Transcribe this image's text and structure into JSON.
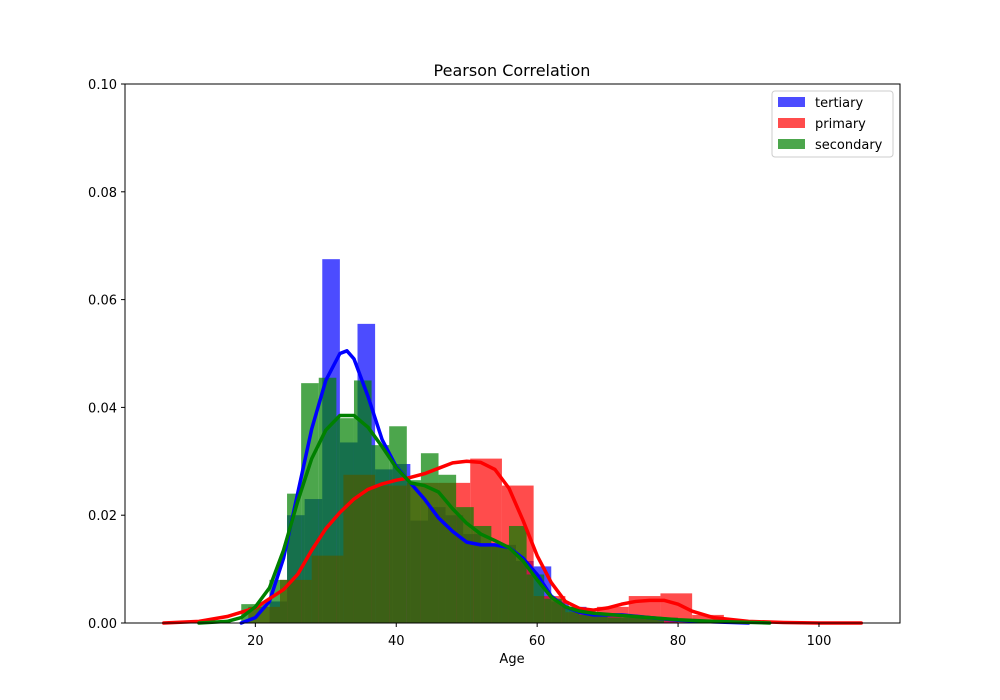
{
  "chart_data": {
    "type": "bar",
    "title": "Pearson Correlation",
    "xlabel": "Age",
    "ylabel": "",
    "xlim": [
      1.5,
      111.5
    ],
    "ylim": [
      0,
      0.1
    ],
    "xticks": [
      20,
      40,
      60,
      80,
      100
    ],
    "yticks": [
      0.0,
      0.02,
      0.04,
      0.06,
      0.08,
      0.1
    ],
    "xtick_labels": [
      "20",
      "40",
      "60",
      "80",
      "100"
    ],
    "ytick_labels": [
      "0.00",
      "0.02",
      "0.04",
      "0.06",
      "0.08",
      "0.10"
    ],
    "legend_position": "top-right",
    "grid": false,
    "series": [
      {
        "name": "tertiary",
        "color": "#0000ff",
        "histogram": [
          {
            "x0": 22.0,
            "x1": 24.5,
            "y": 0.004
          },
          {
            "x0": 24.5,
            "x1": 27.0,
            "y": 0.02
          },
          {
            "x0": 27.0,
            "x1": 29.5,
            "y": 0.023
          },
          {
            "x0": 29.5,
            "x1": 32.0,
            "y": 0.0675
          },
          {
            "x0": 32.0,
            "x1": 34.5,
            "y": 0.0335
          },
          {
            "x0": 34.5,
            "x1": 37.0,
            "y": 0.0555
          },
          {
            "x0": 37.0,
            "x1": 39.5,
            "y": 0.0285
          },
          {
            "x0": 39.5,
            "x1": 42.0,
            "y": 0.0295
          },
          {
            "x0": 42.0,
            "x1": 44.5,
            "y": 0.019
          },
          {
            "x0": 44.5,
            "x1": 47.0,
            "y": 0.0215
          },
          {
            "x0": 47.0,
            "x1": 49.5,
            "y": 0.02
          },
          {
            "x0": 49.5,
            "x1": 52.0,
            "y": 0.0165
          },
          {
            "x0": 52.0,
            "x1": 54.5,
            "y": 0.0145
          },
          {
            "x0": 54.5,
            "x1": 57.0,
            "y": 0.0145
          },
          {
            "x0": 57.0,
            "x1": 59.5,
            "y": 0.0115
          },
          {
            "x0": 59.5,
            "x1": 62.0,
            "y": 0.0105
          },
          {
            "x0": 62.0,
            "x1": 64.5,
            "y": 0.004
          },
          {
            "x0": 64.5,
            "x1": 67.0,
            "y": 0.003
          },
          {
            "x0": 67.0,
            "x1": 72.0,
            "y": 0.0015
          },
          {
            "x0": 72.0,
            "x1": 80.0,
            "y": 0.001
          }
        ],
        "kde": [
          [
            18,
            0.0
          ],
          [
            20,
            0.001
          ],
          [
            22,
            0.004
          ],
          [
            24,
            0.012
          ],
          [
            26,
            0.024
          ],
          [
            28,
            0.036
          ],
          [
            30,
            0.045
          ],
          [
            32,
            0.05
          ],
          [
            33,
            0.0505
          ],
          [
            34,
            0.049
          ],
          [
            36,
            0.042
          ],
          [
            38,
            0.034
          ],
          [
            40,
            0.029
          ],
          [
            42,
            0.026
          ],
          [
            44,
            0.023
          ],
          [
            46,
            0.0195
          ],
          [
            48,
            0.017
          ],
          [
            50,
            0.015
          ],
          [
            52,
            0.0145
          ],
          [
            54,
            0.0145
          ],
          [
            56,
            0.014
          ],
          [
            58,
            0.012
          ],
          [
            60,
            0.009
          ],
          [
            62,
            0.005
          ],
          [
            64,
            0.003
          ],
          [
            66,
            0.002
          ],
          [
            68,
            0.0015
          ],
          [
            72,
            0.0015
          ],
          [
            76,
            0.001
          ],
          [
            80,
            0.0005
          ],
          [
            85,
            0.0002
          ],
          [
            90,
            0.0
          ]
        ]
      },
      {
        "name": "primary",
        "color": "#ff0000",
        "histogram": [
          {
            "x0": 19.0,
            "x1": 23.5,
            "y": 0.003
          },
          {
            "x0": 23.5,
            "x1": 28.0,
            "y": 0.008
          },
          {
            "x0": 28.0,
            "x1": 32.5,
            "y": 0.0125
          },
          {
            "x0": 32.5,
            "x1": 37.0,
            "y": 0.0275
          },
          {
            "x0": 37.0,
            "x1": 41.5,
            "y": 0.0255
          },
          {
            "x0": 41.5,
            "x1": 46.0,
            "y": 0.026
          },
          {
            "x0": 46.0,
            "x1": 50.5,
            "y": 0.026
          },
          {
            "x0": 50.5,
            "x1": 55.0,
            "y": 0.0305
          },
          {
            "x0": 55.0,
            "x1": 59.5,
            "y": 0.0255
          },
          {
            "x0": 59.5,
            "x1": 64.0,
            "y": 0.005
          },
          {
            "x0": 64.0,
            "x1": 68.5,
            "y": 0.002
          },
          {
            "x0": 68.5,
            "x1": 73.0,
            "y": 0.003
          },
          {
            "x0": 73.0,
            "x1": 77.5,
            "y": 0.005
          },
          {
            "x0": 77.5,
            "x1": 82.0,
            "y": 0.0055
          },
          {
            "x0": 82.0,
            "x1": 86.5,
            "y": 0.0015
          }
        ],
        "kde": [
          [
            7,
            0.0
          ],
          [
            12,
            0.0003
          ],
          [
            16,
            0.0012
          ],
          [
            20,
            0.0028
          ],
          [
            24,
            0.0062
          ],
          [
            26,
            0.009
          ],
          [
            28,
            0.0135
          ],
          [
            30,
            0.0175
          ],
          [
            32,
            0.0205
          ],
          [
            34,
            0.023
          ],
          [
            36,
            0.0248
          ],
          [
            38,
            0.0258
          ],
          [
            40,
            0.0265
          ],
          [
            42,
            0.027
          ],
          [
            44,
            0.0277
          ],
          [
            46,
            0.0287
          ],
          [
            48,
            0.0297
          ],
          [
            50,
            0.03
          ],
          [
            52,
            0.0298
          ],
          [
            54,
            0.0285
          ],
          [
            56,
            0.025
          ],
          [
            58,
            0.019
          ],
          [
            60,
            0.0125
          ],
          [
            62,
            0.0075
          ],
          [
            64,
            0.004
          ],
          [
            66,
            0.0027
          ],
          [
            68,
            0.0024
          ],
          [
            70,
            0.0028
          ],
          [
            72,
            0.0035
          ],
          [
            74,
            0.004
          ],
          [
            76,
            0.0042
          ],
          [
            78,
            0.0042
          ],
          [
            80,
            0.0035
          ],
          [
            82,
            0.0022
          ],
          [
            85,
            0.001
          ],
          [
            90,
            0.0003
          ],
          [
            95,
            0.0001
          ],
          [
            100,
            0.0
          ],
          [
            106,
            0.0
          ]
        ]
      },
      {
        "name": "secondary",
        "color": "#008000",
        "histogram": [
          {
            "x0": 18.0,
            "x1": 22.0,
            "y": 0.0035
          },
          {
            "x0": 22.0,
            "x1": 24.5,
            "y": 0.008
          },
          {
            "x0": 24.5,
            "x1": 26.5,
            "y": 0.024
          },
          {
            "x0": 26.5,
            "x1": 29.0,
            "y": 0.0445
          },
          {
            "x0": 29.0,
            "x1": 31.5,
            "y": 0.0455
          },
          {
            "x0": 31.5,
            "x1": 34.0,
            "y": 0.038
          },
          {
            "x0": 34.0,
            "x1": 36.5,
            "y": 0.045
          },
          {
            "x0": 36.5,
            "x1": 39.0,
            "y": 0.033
          },
          {
            "x0": 39.0,
            "x1": 41.5,
            "y": 0.0365
          },
          {
            "x0": 41.5,
            "x1": 43.5,
            "y": 0.0265
          },
          {
            "x0": 43.5,
            "x1": 46.0,
            "y": 0.0315
          },
          {
            "x0": 46.0,
            "x1": 48.5,
            "y": 0.0275
          },
          {
            "x0": 48.5,
            "x1": 51.0,
            "y": 0.0215
          },
          {
            "x0": 51.0,
            "x1": 53.5,
            "y": 0.018
          },
          {
            "x0": 53.5,
            "x1": 56.0,
            "y": 0.0145
          },
          {
            "x0": 56.0,
            "x1": 58.5,
            "y": 0.018
          },
          {
            "x0": 58.5,
            "x1": 61.0,
            "y": 0.009
          },
          {
            "x0": 61.0,
            "x1": 63.5,
            "y": 0.0045
          },
          {
            "x0": 63.5,
            "x1": 66.0,
            "y": 0.003
          },
          {
            "x0": 66.0,
            "x1": 70.0,
            "y": 0.0015
          },
          {
            "x0": 70.0,
            "x1": 78.0,
            "y": 0.001
          }
        ],
        "kde": [
          [
            12,
            0.0
          ],
          [
            16,
            0.0003
          ],
          [
            18,
            0.001
          ],
          [
            20,
            0.003
          ],
          [
            22,
            0.0065
          ],
          [
            24,
            0.0135
          ],
          [
            26,
            0.0225
          ],
          [
            28,
            0.0305
          ],
          [
            30,
            0.0358
          ],
          [
            32,
            0.0385
          ],
          [
            34,
            0.0385
          ],
          [
            36,
            0.0363
          ],
          [
            38,
            0.0327
          ],
          [
            40,
            0.0288
          ],
          [
            42,
            0.026
          ],
          [
            44,
            0.0255
          ],
          [
            46,
            0.0243
          ],
          [
            48,
            0.0212
          ],
          [
            50,
            0.0185
          ],
          [
            52,
            0.0165
          ],
          [
            54,
            0.0153
          ],
          [
            56,
            0.014
          ],
          [
            58,
            0.0115
          ],
          [
            60,
            0.008
          ],
          [
            62,
            0.0048
          ],
          [
            64,
            0.003
          ],
          [
            66,
            0.0022
          ],
          [
            68,
            0.0018
          ],
          [
            72,
            0.0014
          ],
          [
            76,
            0.001
          ],
          [
            80,
            0.0006
          ],
          [
            85,
            0.0003
          ],
          [
            93,
            0.0
          ]
        ]
      }
    ]
  }
}
